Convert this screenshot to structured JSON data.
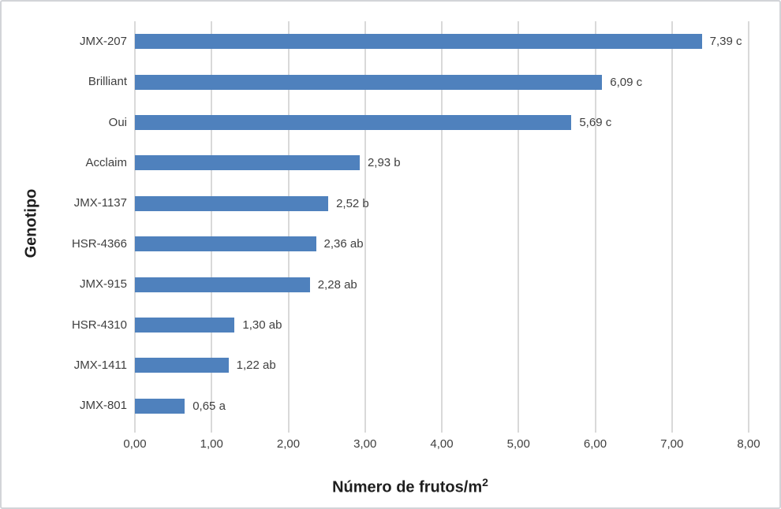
{
  "chart_data": {
    "type": "bar",
    "orientation": "horizontal",
    "title": "",
    "xlabel_main": "Número de frutos/m",
    "xlabel_sup": "2",
    "ylabel": "Genotipo",
    "categories": [
      "JMX-207",
      "Brilliant",
      "Oui",
      "Acclaim",
      "JMX-1137",
      "HSR-4366",
      "JMX-915",
      "HSR-4310",
      "JMX-1411",
      "JMX-801"
    ],
    "values": [
      7.39,
      6.09,
      5.69,
      2.93,
      2.52,
      2.36,
      2.28,
      1.3,
      1.22,
      0.65
    ],
    "data_labels": [
      "7,39 c",
      "6,09 c",
      "5,69 c",
      "2,93 b",
      "2,52 b",
      "2,36 ab",
      "2,28 ab",
      "1,30 ab",
      "1,22 ab",
      "0,65 a"
    ],
    "xticks": [
      "0,00",
      "1,00",
      "2,00",
      "3,00",
      "4,00",
      "5,00",
      "6,00",
      "7,00",
      "8,00"
    ],
    "xlim": [
      0,
      8
    ],
    "grid": "vertical",
    "legend": "none",
    "bar_color": "#4F81BD",
    "gridline_color": "#D9D9D9",
    "label_color": "#3F3F3F",
    "title_color": "#1F1F1F"
  }
}
